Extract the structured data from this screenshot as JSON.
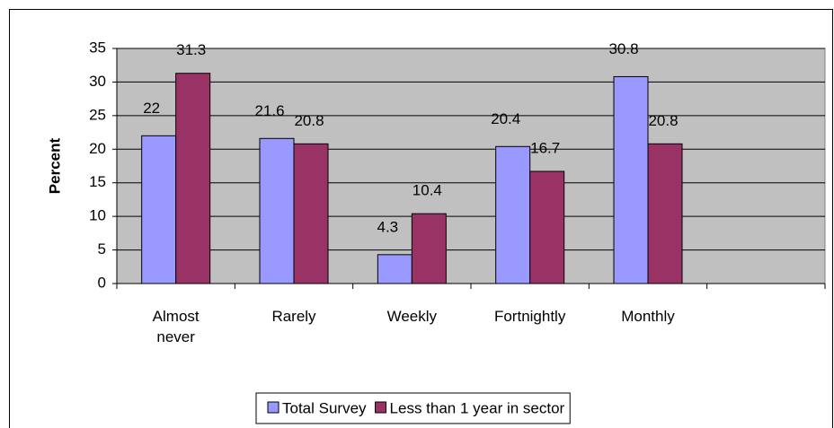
{
  "chart_data": {
    "type": "bar",
    "y_label": "Percent",
    "categories": [
      "Almost never",
      "Rarely",
      "Weekly",
      "Fortnightly",
      "Monthly",
      null
    ],
    "series": [
      {
        "name": "Total Survey",
        "color": "#9999ff",
        "values": [
          22,
          21.6,
          4.3,
          20.4,
          30.8,
          null
        ]
      },
      {
        "name": "Less than 1 year in sector",
        "color": "#993366",
        "values": [
          31.3,
          20.8,
          10.4,
          16.7,
          20.8,
          null
        ]
      }
    ],
    "ylim": [
      0,
      35
    ],
    "yticks": [
      0,
      5,
      10,
      15,
      20,
      25,
      30,
      35
    ],
    "grid": true,
    "plot_background": "#c0c0c0",
    "legend": "bottom"
  }
}
